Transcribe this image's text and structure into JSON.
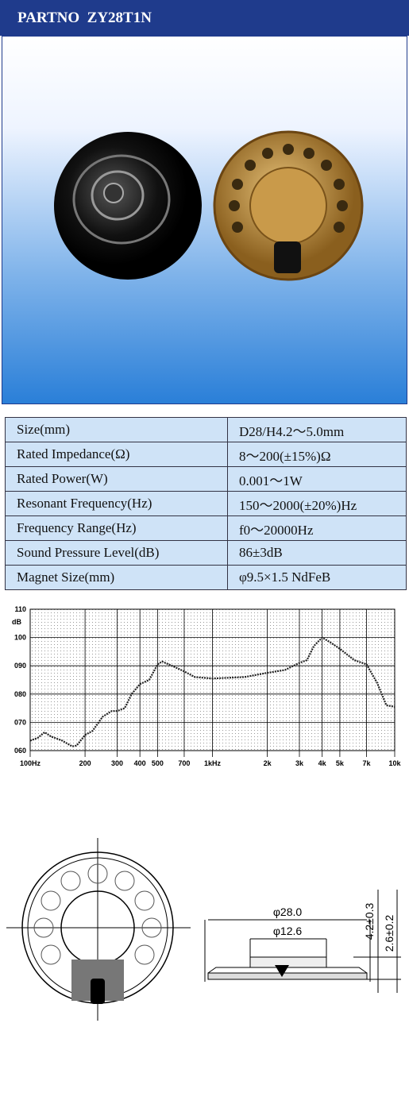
{
  "header": {
    "title": "PARTNO  ZY28T1N"
  },
  "specs": {
    "rows": [
      [
        "Size(mm)",
        "D28/H4.2～5.0mm"
      ],
      [
        "Rated Impedance(Ω)",
        "8～200(±15%)Ω"
      ],
      [
        "Rated Power(W)",
        "0.001～1W"
      ],
      [
        "Resonant Frequency(Hz)",
        "150～2000(±20%)Hz"
      ],
      [
        "Frequency Range(Hz)",
        "f0～20000Hz"
      ],
      [
        "Sound Pressure Level(dB)",
        "86±3dB"
      ],
      [
        "Magnet Size(mm)",
        "φ9.5×1.5 NdFeB"
      ]
    ]
  },
  "chart_data": {
    "type": "line",
    "ylabel": "dB",
    "xscale": "log",
    "grid": true,
    "color": "#222222",
    "x": [
      100,
      110,
      120,
      130,
      150,
      170,
      180,
      200,
      220,
      250,
      280,
      300,
      330,
      360,
      400,
      450,
      500,
      530,
      600,
      700,
      800,
      1000,
      1500,
      2000,
      2500,
      3000,
      3300,
      3600,
      4000,
      4500,
      5000,
      6000,
      7000,
      8000,
      9000,
      10000
    ],
    "values": [
      63.5,
      64.5,
      66.5,
      65,
      63.5,
      61.5,
      61.8,
      65.5,
      67,
      72,
      74,
      74,
      75,
      80,
      83.5,
      85,
      90.5,
      91.5,
      90,
      88,
      86,
      85.5,
      86,
      87.5,
      88.5,
      91,
      92,
      97,
      100,
      98,
      96,
      92,
      90.5,
      84,
      76,
      75.5
    ],
    "xlim": [
      100,
      10000
    ],
    "xticks": [
      {
        "value": 100,
        "label": "100Hz"
      },
      200,
      300,
      400,
      500,
      700,
      {
        "value": 1000,
        "label": "1kHz"
      },
      {
        "value": 2000,
        "label": "2k"
      },
      {
        "value": 3000,
        "label": "3k"
      },
      {
        "value": 4000,
        "label": "4k"
      },
      {
        "value": 5000,
        "label": "5k"
      },
      {
        "value": 7000,
        "label": "7k"
      },
      {
        "value": 10000,
        "label": "10k"
      }
    ],
    "ylim": [
      60,
      110
    ],
    "yticks": [
      {
        "value": 60,
        "label": "060"
      },
      {
        "value": 70,
        "label": "070"
      },
      {
        "value": 80,
        "label": "080"
      },
      {
        "value": 90,
        "label": "090"
      },
      100,
      110
    ]
  },
  "drawing": {
    "dimensions": [
      "φ28.0",
      "φ12.6",
      "4.2±0.3",
      "2.6±0.2"
    ]
  }
}
